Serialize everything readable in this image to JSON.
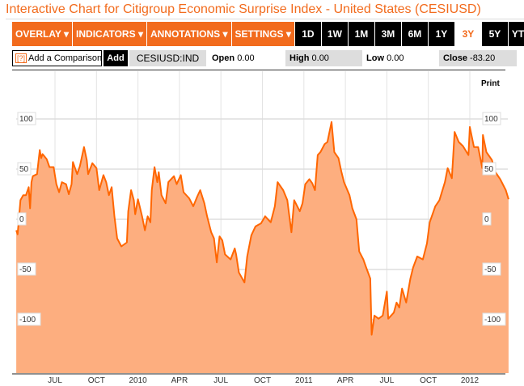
{
  "title": "Interactive Chart for Citigroup Economic Surprise Index - United States (CESIUSD)",
  "toolbar": {
    "menus": [
      "OVERLAY ▾",
      "INDICATORS ▾",
      "ANNOTATIONS ▾",
      "SETTINGS ▾"
    ],
    "ranges": [
      "1D",
      "1W",
      "1M",
      "3M",
      "6M",
      "1Y",
      "3Y",
      "5Y",
      "YTD"
    ],
    "active_range": "3Y"
  },
  "quote": {
    "compare_icon": "[?]",
    "compare_placeholder": "Add a Comparison",
    "add_label": "Add",
    "symbol": "CESIUSD:IND",
    "open_label": "Open",
    "open_value": "0.00",
    "high_label": "High",
    "high_value": "0.00",
    "low_label": "Low",
    "low_value": "0.00",
    "close_label": "Close",
    "close_value": "-83.20"
  },
  "print_label": "Print",
  "colors": {
    "accent": "#f26b1d",
    "line": "#ff6600",
    "fill": "#fdae7f"
  },
  "chart_data": {
    "type": "area",
    "title": "Citigroup Economic Surprise Index - United States (CESIUSD)",
    "x_unit": "months since Jan 2009",
    "y_ticks": [
      100,
      50,
      0,
      -50,
      -100
    ],
    "ylim": [
      -150,
      110
    ],
    "x_ticks": [
      {
        "m": 6,
        "label": "JUL"
      },
      {
        "m": 9,
        "label": "OCT"
      },
      {
        "m": 12,
        "label": "2010"
      },
      {
        "m": 15,
        "label": "APR"
      },
      {
        "m": 18,
        "label": "JUL"
      },
      {
        "m": 21,
        "label": "OCT"
      },
      {
        "m": 24,
        "label": "2011"
      },
      {
        "m": 27,
        "label": "APR"
      },
      {
        "m": 30,
        "label": "JUL"
      },
      {
        "m": 33,
        "label": "OCT"
      },
      {
        "m": 36,
        "label": "2012"
      }
    ],
    "grid": true,
    "points": [
      [
        3.2,
        -11
      ],
      [
        3.3,
        -15
      ],
      [
        3.5,
        19
      ],
      [
        3.7,
        24
      ],
      [
        3.9,
        24
      ],
      [
        4.1,
        32
      ],
      [
        4.2,
        11
      ],
      [
        4.3,
        37
      ],
      [
        4.4,
        43
      ],
      [
        4.7,
        45
      ],
      [
        4.9,
        69
      ],
      [
        5.0,
        61
      ],
      [
        5.1,
        65
      ],
      [
        5.4,
        60
      ],
      [
        5.6,
        52
      ],
      [
        5.9,
        52
      ],
      [
        6.1,
        35
      ],
      [
        6.3,
        27
      ],
      [
        6.5,
        37
      ],
      [
        6.8,
        35
      ],
      [
        7.0,
        25
      ],
      [
        7.2,
        35
      ],
      [
        7.3,
        57
      ],
      [
        7.6,
        45
      ],
      [
        7.8,
        53
      ],
      [
        8.1,
        72
      ],
      [
        8.3,
        59
      ],
      [
        8.4,
        45
      ],
      [
        8.7,
        56
      ],
      [
        9.0,
        51
      ],
      [
        9.2,
        29
      ],
      [
        9.5,
        44
      ],
      [
        9.7,
        37
      ],
      [
        9.9,
        24
      ],
      [
        10.1,
        32
      ],
      [
        10.3,
        3
      ],
      [
        10.5,
        -19
      ],
      [
        10.8,
        -27
      ],
      [
        11.2,
        -23
      ],
      [
        11.3,
        8
      ],
      [
        11.5,
        29
      ],
      [
        11.7,
        19
      ],
      [
        11.8,
        5
      ],
      [
        12.0,
        20
      ],
      [
        12.3,
        3
      ],
      [
        12.5,
        -11
      ],
      [
        12.7,
        3
      ],
      [
        12.9,
        -3
      ],
      [
        13.0,
        29
      ],
      [
        13.2,
        52
      ],
      [
        13.4,
        37
      ],
      [
        13.5,
        47
      ],
      [
        13.7,
        24
      ],
      [
        14.0,
        16
      ],
      [
        14.2,
        37
      ],
      [
        14.6,
        43
      ],
      [
        14.8,
        35
      ],
      [
        15.1,
        44
      ],
      [
        15.3,
        27
      ],
      [
        15.7,
        21
      ],
      [
        16.0,
        13
      ],
      [
        16.3,
        23
      ],
      [
        16.5,
        29
      ],
      [
        16.8,
        16
      ],
      [
        17.0,
        3
      ],
      [
        17.3,
        -13
      ],
      [
        17.5,
        -19
      ],
      [
        17.7,
        -43
      ],
      [
        17.9,
        -17
      ],
      [
        18.1,
        -21
      ],
      [
        18.3,
        -35
      ],
      [
        18.7,
        -40
      ],
      [
        19.0,
        -29
      ],
      [
        19.1,
        -35
      ],
      [
        19.3,
        -53
      ],
      [
        19.7,
        -63
      ],
      [
        19.9,
        -37
      ],
      [
        20.2,
        -16
      ],
      [
        20.5,
        -7
      ],
      [
        20.9,
        -4
      ],
      [
        21.2,
        3
      ],
      [
        21.6,
        -3
      ],
      [
        21.9,
        13
      ],
      [
        22.1,
        37
      ],
      [
        22.5,
        29
      ],
      [
        22.8,
        19
      ],
      [
        23.1,
        -13
      ],
      [
        23.3,
        19
      ],
      [
        23.7,
        8
      ],
      [
        23.9,
        16
      ],
      [
        24.1,
        35
      ],
      [
        24.4,
        40
      ],
      [
        24.6,
        36
      ],
      [
        24.8,
        29
      ],
      [
        25.0,
        64
      ],
      [
        25.2,
        67
      ],
      [
        25.5,
        75
      ],
      [
        25.7,
        77
      ],
      [
        26.0,
        97
      ],
      [
        26.2,
        67
      ],
      [
        26.5,
        61
      ],
      [
        26.7,
        48
      ],
      [
        26.9,
        37
      ],
      [
        27.3,
        24
      ],
      [
        27.5,
        11
      ],
      [
        27.8,
        0
      ],
      [
        28.0,
        -32
      ],
      [
        28.3,
        -40
      ],
      [
        28.5,
        -48
      ],
      [
        28.8,
        -59
      ],
      [
        28.9,
        -115
      ],
      [
        29.1,
        -96
      ],
      [
        29.4,
        -99
      ],
      [
        29.7,
        -96
      ],
      [
        30.0,
        -72
      ],
      [
        30.1,
        -99
      ],
      [
        30.5,
        -93
      ],
      [
        30.7,
        -83
      ],
      [
        30.9,
        -88
      ],
      [
        31.1,
        -69
      ],
      [
        31.4,
        -83
      ],
      [
        31.7,
        -59
      ],
      [
        31.9,
        -48
      ],
      [
        32.2,
        -37
      ],
      [
        32.6,
        -40
      ],
      [
        32.9,
        -24
      ],
      [
        33.1,
        -3
      ],
      [
        33.5,
        13
      ],
      [
        33.8,
        19
      ],
      [
        34.2,
        37
      ],
      [
        34.4,
        51
      ],
      [
        34.7,
        41
      ],
      [
        34.9,
        87
      ],
      [
        35.2,
        77
      ],
      [
        35.5,
        73
      ],
      [
        35.9,
        64
      ],
      [
        36.0,
        92
      ],
      [
        36.3,
        72
      ],
      [
        36.6,
        72
      ],
      [
        36.9,
        51
      ],
      [
        36.95,
        84
      ],
      [
        37.2,
        67
      ],
      [
        37.6,
        59
      ],
      [
        37.8,
        48
      ],
      [
        38.2,
        40
      ],
      [
        38.6,
        29
      ],
      [
        38.8,
        20
      ]
    ]
  }
}
